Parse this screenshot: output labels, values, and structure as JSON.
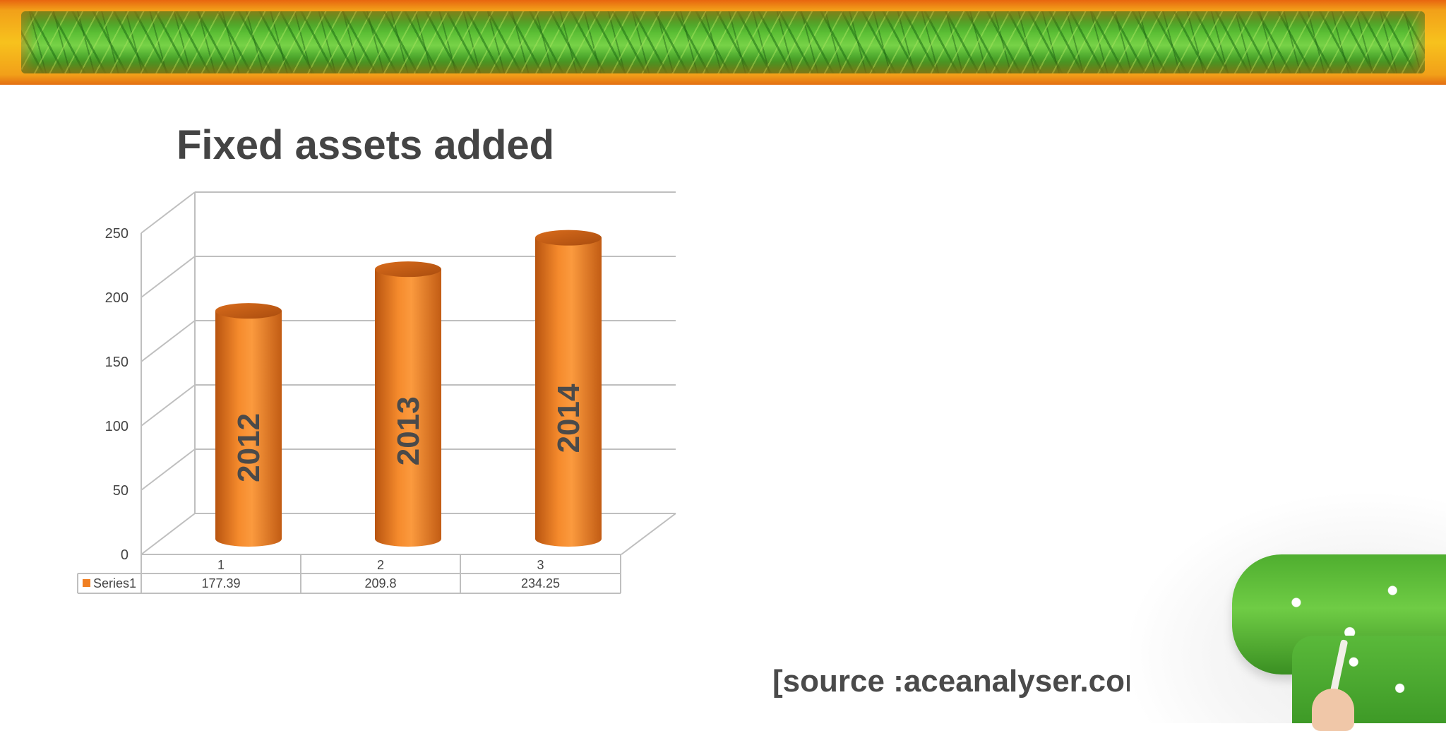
{
  "slide": {
    "title": "Fixed assets added",
    "source": "[source :aceanalyser.com]"
  },
  "colors": {
    "banner": "#f2a019",
    "bar": "#f07f22",
    "bar_dark": "#c45e12",
    "label": "#4a4a4a",
    "grid": "#bfbfbf"
  },
  "chart_data": {
    "type": "bar",
    "style": "3d-cylinder",
    "title": "Fixed assets added",
    "categories": [
      "1",
      "2",
      "3"
    ],
    "bar_labels": [
      "2012",
      "2013",
      "2014"
    ],
    "series": [
      {
        "name": "Series1",
        "values": [
          177.39,
          209.8,
          234.25
        ]
      }
    ],
    "ylim": [
      0,
      250
    ],
    "yticks": [
      0,
      50,
      100,
      150,
      200,
      250
    ],
    "grid": true,
    "data_table": true,
    "legend": "in data table"
  }
}
